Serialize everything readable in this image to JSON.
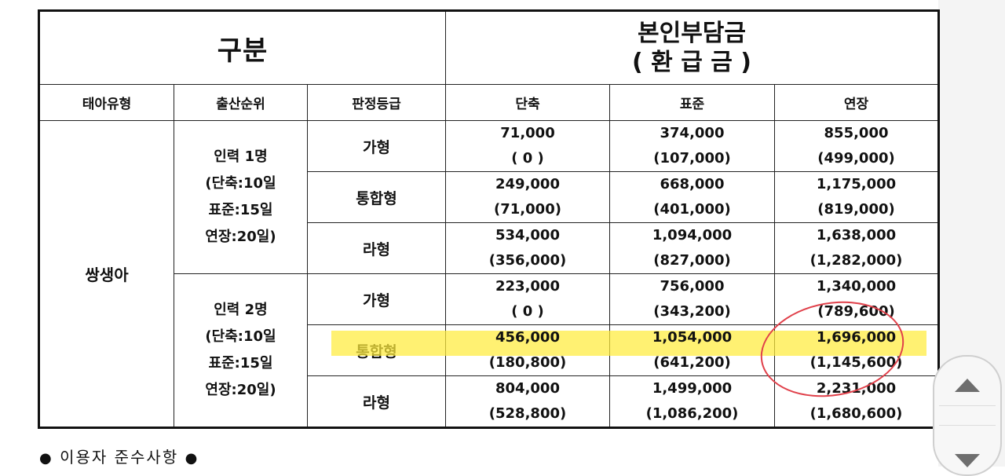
{
  "header": {
    "category": "구분",
    "fee_title": "본인부담금",
    "fee_subtitle": "( 환 급 금 )"
  },
  "columns": {
    "fetus_type": "태아유형",
    "birth_order": "출산순위",
    "grade": "판정등급",
    "short": "단축",
    "standard": "표준",
    "extended": "연장"
  },
  "fetus_type_value": "쌍생아",
  "groups": [
    {
      "order_lines": [
        "인력 1명",
        "(단축:10일",
        "표준:15일",
        "연장:20일)"
      ],
      "rows": [
        {
          "grade": "가형",
          "short": [
            "71,000",
            "( 0 )"
          ],
          "standard": [
            "374,000",
            "(107,000)"
          ],
          "extended": [
            "855,000",
            "(499,000)"
          ]
        },
        {
          "grade": "통합형",
          "short": [
            "249,000",
            "(71,000)"
          ],
          "standard": [
            "668,000",
            "(401,000)"
          ],
          "extended": [
            "1,175,000",
            "(819,000)"
          ]
        },
        {
          "grade": "라형",
          "short": [
            "534,000",
            "(356,000)"
          ],
          "standard": [
            "1,094,000",
            "(827,000)"
          ],
          "extended": [
            "1,638,000",
            "(1,282,000)"
          ]
        }
      ]
    },
    {
      "order_lines": [
        "인력 2명",
        "(단축:10일",
        "표준:15일",
        "연장:20일)"
      ],
      "rows": [
        {
          "grade": "가형",
          "short": [
            "223,000",
            "( 0 )"
          ],
          "standard": [
            "756,000",
            "(343,200)"
          ],
          "extended": [
            "1,340,000",
            "(789,600)"
          ]
        },
        {
          "grade": "통합형",
          "short": [
            "456,000",
            "(180,800)"
          ],
          "standard": [
            "1,054,000",
            "(641,200)"
          ],
          "extended": [
            "1,696,000",
            "(1,145,600)"
          ]
        },
        {
          "grade": "라형",
          "short": [
            "804,000",
            "(528,800)"
          ],
          "standard": [
            "1,499,000",
            "(1,086,200)"
          ],
          "extended": [
            "2,231,000",
            "(1,680,600)"
          ]
        }
      ]
    }
  ],
  "note": {
    "bullet_left": "●",
    "text": "이용자 준수사항",
    "bullet_right": "●"
  },
  "scroll": {
    "up_icon": "arrow-up-icon",
    "down_icon": "arrow-down-icon"
  },
  "colors": {
    "highlight": "#ffec3c",
    "circle": "#e0404a"
  }
}
